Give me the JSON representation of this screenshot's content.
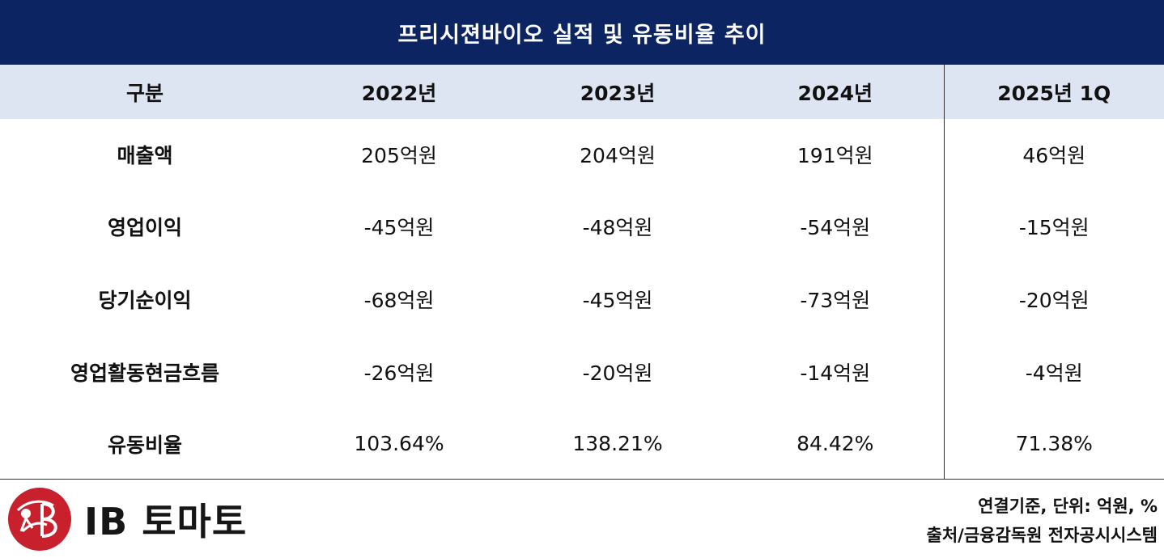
{
  "title": "프리시젼바이오 실적 및 유동비율 추이",
  "table": {
    "headers": [
      "구분",
      "2022년",
      "2023년",
      "2024년",
      "2025년 1Q"
    ],
    "rows": [
      {
        "label": "매출액",
        "values": [
          "205억원",
          "204억원",
          "191억원",
          "46억원"
        ]
      },
      {
        "label": "영업이익",
        "values": [
          "-45억원",
          "-48억원",
          "-54억원",
          "-15억원"
        ]
      },
      {
        "label": "당기순이익",
        "values": [
          "-68억원",
          "-45억원",
          "-73억원",
          "-20억원"
        ]
      },
      {
        "label": "영업활동현금흐름",
        "values": [
          "-26억원",
          "-20억원",
          "-14억원",
          "-4억원"
        ]
      },
      {
        "label": "유동비율",
        "values": [
          "103.64%",
          "138.21%",
          "84.42%",
          "71.38%"
        ]
      }
    ]
  },
  "logo": {
    "text": "IB 토마토",
    "icon": "ib-tomato-logo-icon"
  },
  "notes": {
    "basis": "연결기준, 단위: 억원, %",
    "source": "출처/금융감독원 전자공시시스템"
  },
  "colors": {
    "header_bg": "#0d2463",
    "subheader_bg": "#dde4f2",
    "logo_red": "#c8202c"
  }
}
